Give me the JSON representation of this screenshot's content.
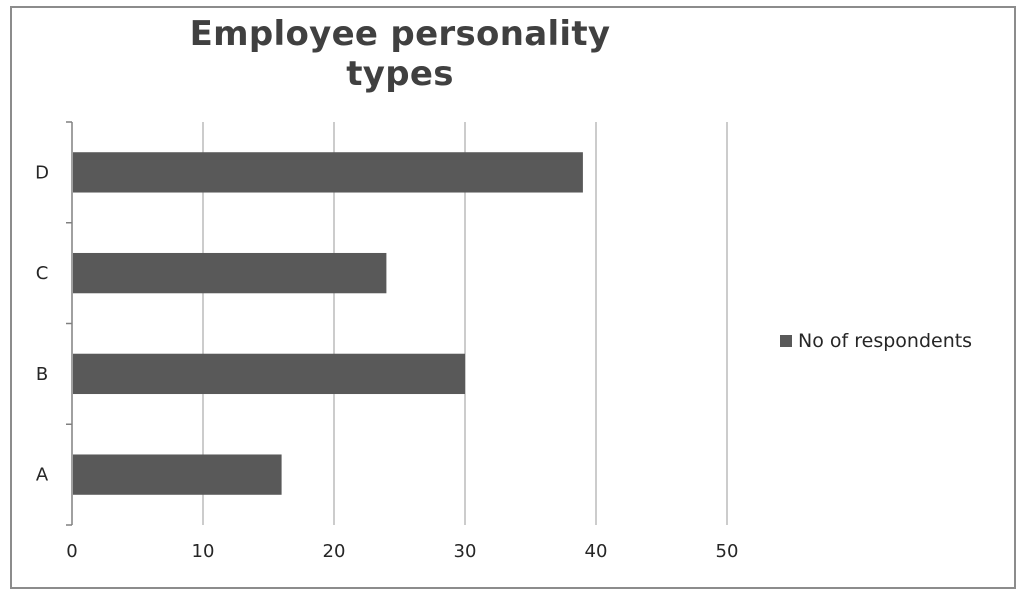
{
  "chart_data": {
    "type": "bar",
    "orientation": "horizontal",
    "title": "Employee personality types",
    "categories": [
      "A",
      "B",
      "C",
      "D"
    ],
    "series": [
      {
        "name": "No of respondents",
        "values": [
          16,
          30,
          24,
          39
        ],
        "color": "#595959"
      }
    ],
    "xlim": [
      0,
      50
    ],
    "x_ticks": [
      0,
      10,
      20,
      30,
      40,
      50
    ],
    "xlabel": "",
    "ylabel": "",
    "grid": "vertical",
    "legend_position": "right"
  }
}
